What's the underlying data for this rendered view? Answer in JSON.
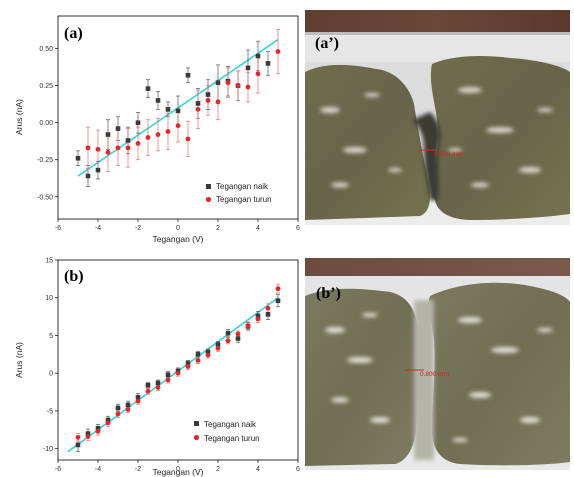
{
  "panels": {
    "a": "(a)",
    "a_prime": "(a’)",
    "b": "(b)",
    "b_prime": "(b’)"
  },
  "photos": {
    "a_scale_text": "0.700 mm",
    "b_scale_text": "0.800 mm",
    "gel_color": "#6e6e4c",
    "background_top": "#5b3b2e"
  },
  "colors": {
    "naik": "#3a3a3a",
    "turun": "#e8262a",
    "fit": "#2fd6dc"
  },
  "chart_data": [
    {
      "type": "scatter",
      "xlabel": "Tegangan (V)",
      "ylabel": "Arus (nA)",
      "xlim": [
        -6,
        6
      ],
      "ylim": [
        -0.65,
        0.72
      ],
      "xticks": [
        -6,
        -4,
        -2,
        0,
        2,
        4,
        6
      ],
      "yticks": [
        -0.5,
        -0.25,
        0.0,
        0.25,
        0.5
      ],
      "ytick_labels": [
        "-0.50",
        "-0.25",
        "0.00",
        "0.25",
        "0.50"
      ],
      "legend_position": "bottom-right",
      "fit_line": {
        "x": [
          -5,
          5
        ],
        "y": [
          -0.36,
          0.56
        ]
      },
      "series": [
        {
          "name": "Tegangan naik",
          "marker": "square",
          "x": [
            -5,
            -4.5,
            -4,
            -3.5,
            -3,
            -2.5,
            -2,
            -1.5,
            -1,
            -0.5,
            0,
            0.5,
            1,
            1.5,
            2,
            2.5,
            3,
            3.5,
            4,
            4.5
          ],
          "y": [
            -0.24,
            -0.36,
            -0.32,
            -0.08,
            -0.04,
            -0.12,
            0.0,
            0.23,
            0.15,
            0.09,
            0.08,
            0.32,
            0.13,
            0.19,
            0.27,
            0.28,
            0.25,
            0.37,
            0.45,
            0.4
          ],
          "err": [
            0.05,
            0.07,
            0.06,
            0.1,
            0.08,
            0.09,
            0.07,
            0.06,
            0.06,
            0.05,
            0.1,
            0.05,
            0.1,
            0.1,
            0.12,
            0.1,
            0.1,
            0.12,
            0.1,
            0.08
          ]
        },
        {
          "name": "Tegangan turun",
          "marker": "circle",
          "x": [
            -4.5,
            -4,
            -3.5,
            -3,
            -2.5,
            -2,
            -1.5,
            -1,
            -0.5,
            0,
            0.5,
            1,
            1.5,
            2,
            2.5,
            3,
            3.5,
            4,
            5
          ],
          "y": [
            -0.17,
            -0.18,
            -0.2,
            -0.17,
            -0.17,
            -0.14,
            -0.1,
            -0.08,
            -0.06,
            -0.02,
            -0.11,
            0.09,
            0.15,
            0.14,
            0.27,
            0.25,
            0.24,
            0.33,
            0.48
          ],
          "err": [
            0.14,
            0.13,
            0.13,
            0.12,
            0.13,
            0.11,
            0.12,
            0.11,
            0.12,
            0.11,
            0.12,
            0.13,
            0.1,
            0.12,
            0.1,
            0.1,
            0.1,
            0.13,
            0.15
          ]
        }
      ]
    },
    {
      "type": "scatter",
      "xlabel": "Tegangan (V)",
      "ylabel": "Arus (nA)",
      "xlim": [
        -6,
        6
      ],
      "ylim": [
        -11.5,
        15
      ],
      "xticks": [
        -6,
        -4,
        -2,
        0,
        2,
        4,
        6
      ],
      "yticks": [
        -10,
        -5,
        0,
        5,
        10,
        15
      ],
      "ytick_labels": [
        "-10",
        "-5",
        "0",
        "5",
        "10",
        "15"
      ],
      "legend_position": "bottom-right",
      "fit_line": {
        "x": [
          -5.5,
          5
        ],
        "y": [
          -10.4,
          10.0
        ]
      },
      "series": [
        {
          "name": "Tegangan naik",
          "marker": "square",
          "x": [
            -5,
            -4.5,
            -4,
            -3.5,
            -3,
            -2.5,
            -2,
            -1.5,
            -1,
            -0.5,
            0,
            0.5,
            1,
            1.5,
            2,
            2.5,
            3,
            3.5,
            4,
            4.5,
            5
          ],
          "y": [
            -9.5,
            -8.0,
            -7.3,
            -6.2,
            -4.6,
            -4.2,
            -3.2,
            -1.6,
            -1.3,
            -0.2,
            0.3,
            1.3,
            2.5,
            2.8,
            3.8,
            5.3,
            4.6,
            6.2,
            7.6,
            7.8,
            9.6
          ],
          "err": [
            0.9,
            0.6,
            0.5,
            0.5,
            0.5,
            0.5,
            0.5,
            0.4,
            0.4,
            0.4,
            0.4,
            0.4,
            0.4,
            0.4,
            0.4,
            0.5,
            0.5,
            0.5,
            0.6,
            0.7,
            0.8
          ]
        },
        {
          "name": "Tegangan turun",
          "marker": "circle",
          "x": [
            -5,
            -4.5,
            -4,
            -3.5,
            -3,
            -2.5,
            -2,
            -1.5,
            -1,
            -0.5,
            0,
            0.5,
            1,
            1.5,
            2,
            2.5,
            3,
            3.5,
            4,
            4.5,
            5
          ],
          "y": [
            -8.5,
            -8.4,
            -7.7,
            -6.6,
            -5.4,
            -4.8,
            -3.7,
            -2.4,
            -1.9,
            -0.9,
            0.0,
            0.9,
            1.7,
            2.4,
            3.3,
            4.3,
            5.2,
            6.3,
            7.2,
            8.6,
            11.2
          ],
          "err": [
            0.5,
            0.5,
            0.5,
            0.5,
            0.5,
            0.4,
            0.4,
            0.4,
            0.4,
            0.4,
            0.4,
            0.4,
            0.4,
            0.4,
            0.4,
            0.4,
            0.4,
            0.5,
            0.5,
            0.6,
            0.6
          ]
        }
      ]
    }
  ]
}
